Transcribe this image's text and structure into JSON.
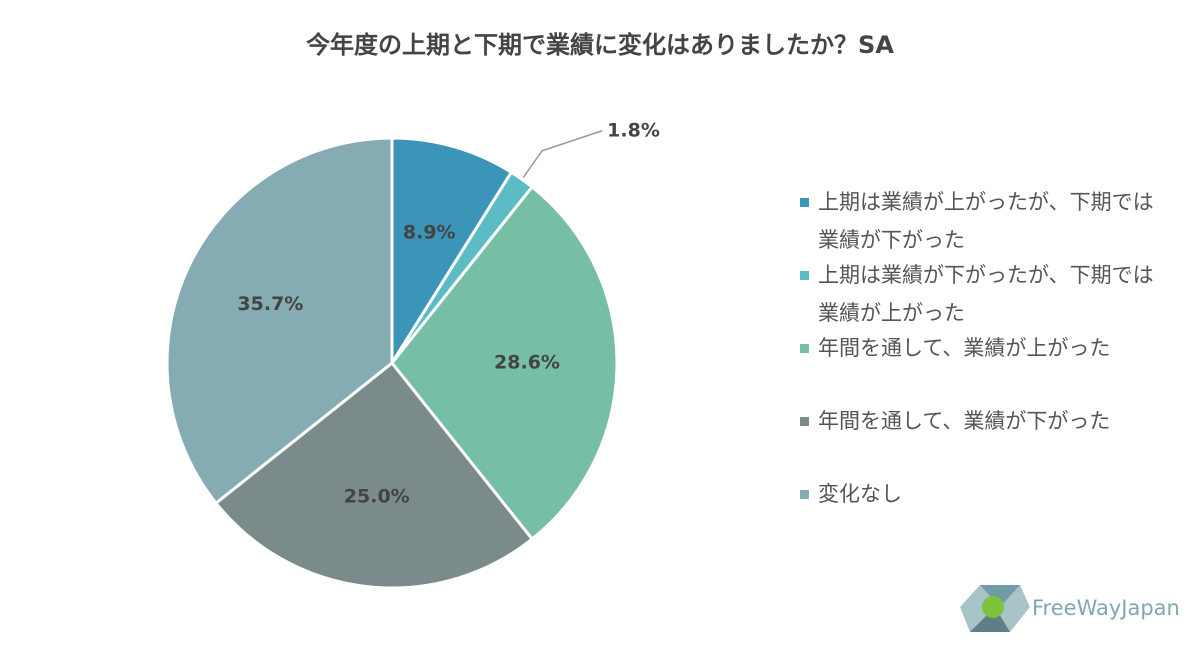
{
  "chart_data": {
    "type": "pie",
    "title": "今年度の上期と下期で業績に変化はありましたか？SA",
    "categories": [
      "上期は業績が上がったが、下期では業績が下がった",
      "上期は業績が下がったが、下期では業績が上がった",
      "年間を通して、業績が上がった",
      "年間を通して、業績が下がった",
      "変化なし"
    ],
    "values": [
      8.9,
      1.8,
      28.6,
      25.0,
      35.7
    ],
    "value_labels": [
      "8.9%",
      "1.8%",
      "28.6%",
      "25.0%",
      "35.7%"
    ],
    "colors": [
      "#3a95b8",
      "#5cbcc6",
      "#77bea6",
      "#7b8b8c",
      "#85abb3"
    ],
    "legend": "right"
  },
  "logo": "FreeWayJapan"
}
